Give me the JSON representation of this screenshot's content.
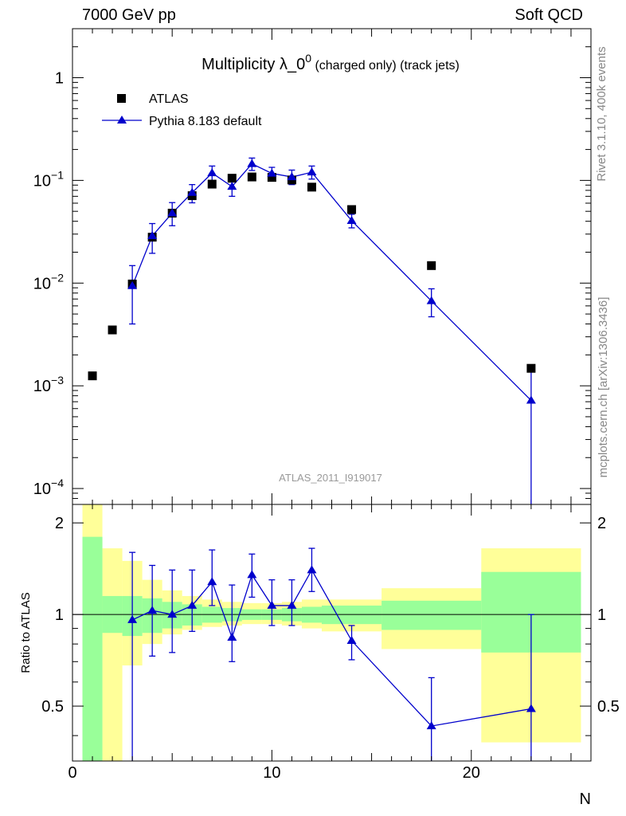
{
  "header": {
    "left": "7000 GeV pp",
    "right": "Soft QCD"
  },
  "side_labels": {
    "rivet": "Rivet 3.1.10,  400k events",
    "source": "mcplots.cern.ch [arXiv:1306.3436]"
  },
  "chart_data": {
    "type": "scatter",
    "title_main": "Multiplicity λ_0",
    "title_sup": "0",
    "title_sub": " (charged only) (track jets)",
    "watermark": "ATLAS_2011_I919017",
    "xlabel": "N",
    "ratio_ylabel": "Ratio to ATLAS",
    "xlim": [
      0,
      26
    ],
    "ylim": [
      7e-05,
      3
    ],
    "yscale": "log",
    "ratio_ylim": [
      0.33,
      2.3
    ],
    "x_ticks": [
      0,
      10,
      20
    ],
    "x_tick_labels": [
      "0",
      "10",
      "20"
    ],
    "y_ticks": [
      0.0001,
      0.001,
      0.01,
      0.1,
      1
    ],
    "y_tick_labels": [
      [
        "10",
        "−4"
      ],
      [
        "10",
        "−3"
      ],
      [
        "10",
        "−2"
      ],
      [
        "10",
        "−1"
      ],
      [
        "1",
        ""
      ]
    ],
    "ratio_ticks": [
      0.5,
      1,
      2
    ],
    "ratio_tick_labels": [
      "0.5",
      "1",
      "2"
    ],
    "legend": {
      "position": "top-left",
      "entries": [
        "ATLAS",
        "Pythia 8.183 default"
      ]
    },
    "colors": {
      "data": "#000000",
      "mc": "#0000cc",
      "band_inner": "#99ff99",
      "band_outer": "#ffff99"
    },
    "series": [
      {
        "name": "ATLAS",
        "x": [
          1,
          2,
          3,
          4,
          5,
          6,
          7,
          8,
          9,
          10,
          11,
          12,
          14,
          18,
          23
        ],
        "values": [
          0.00125,
          0.0035,
          0.0098,
          0.028,
          0.048,
          0.071,
          0.092,
          0.105,
          0.108,
          0.107,
          0.101,
          0.086,
          0.052,
          0.0148,
          0.00148
        ]
      },
      {
        "name": "Pythia 8.183 default",
        "x": [
          3,
          4,
          5,
          6,
          7,
          8,
          9,
          10,
          11,
          12,
          14,
          18,
          23
        ],
        "values": [
          0.0094,
          0.0288,
          0.048,
          0.076,
          0.118,
          0.087,
          0.145,
          0.117,
          0.108,
          0.12,
          0.0405,
          0.0067,
          0.00072
        ],
        "err_low": [
          0.004,
          0.0195,
          0.0362,
          0.0605,
          0.096,
          0.07,
          0.125,
          0.1,
          0.091,
          0.103,
          0.0345,
          0.0047,
          7e-05
        ],
        "err_high": [
          0.0148,
          0.038,
          0.0608,
          0.091,
          0.138,
          0.102,
          0.165,
          0.134,
          0.126,
          0.138,
          0.0468,
          0.0088,
          0.0014
        ]
      }
    ],
    "ratio": {
      "x": [
        3,
        4,
        5,
        6,
        7,
        8,
        9,
        10,
        11,
        12,
        14,
        18,
        23
      ],
      "values": [
        0.96,
        1.03,
        1.0,
        1.07,
        1.28,
        0.84,
        1.35,
        1.07,
        1.07,
        1.4,
        0.82,
        0.43,
        0.49
      ],
      "err_low": [
        0.33,
        0.73,
        0.75,
        0.88,
        1.07,
        0.7,
        1.14,
        0.92,
        0.92,
        1.19,
        0.71,
        0.33,
        0.33
      ],
      "err_high": [
        1.6,
        1.45,
        1.4,
        1.4,
        1.63,
        1.25,
        1.58,
        1.3,
        1.3,
        1.65,
        0.92,
        0.62,
        1.0
      ]
    },
    "bands": {
      "inner": [
        {
          "x": [
            0.5,
            1.5
          ],
          "lo": 0.33,
          "hi": 1.8
        },
        {
          "x": [
            1.5,
            2.5
          ],
          "lo": 0.87,
          "hi": 1.15
        },
        {
          "x": [
            2.5,
            3.5
          ],
          "lo": 0.85,
          "hi": 1.15
        },
        {
          "x": [
            3.5,
            4.5
          ],
          "lo": 0.87,
          "hi": 1.13
        },
        {
          "x": [
            4.5,
            5.5
          ],
          "lo": 0.9,
          "hi": 1.1
        },
        {
          "x": [
            5.5,
            6.5
          ],
          "lo": 0.92,
          "hi": 1.08
        },
        {
          "x": [
            6.5,
            7.5
          ],
          "lo": 0.94,
          "hi": 1.06
        },
        {
          "x": [
            7.5,
            8.5
          ],
          "lo": 0.95,
          "hi": 1.05
        },
        {
          "x": [
            8.5,
            9.5
          ],
          "lo": 0.96,
          "hi": 1.04
        },
        {
          "x": [
            9.5,
            10.5
          ],
          "lo": 0.96,
          "hi": 1.04
        },
        {
          "x": [
            10.5,
            11.5
          ],
          "lo": 0.95,
          "hi": 1.05
        },
        {
          "x": [
            11.5,
            12.5
          ],
          "lo": 0.94,
          "hi": 1.06
        },
        {
          "x": [
            12.5,
            15.5
          ],
          "lo": 0.93,
          "hi": 1.07
        },
        {
          "x": [
            15.5,
            20.5
          ],
          "lo": 0.89,
          "hi": 1.11
        },
        {
          "x": [
            20.5,
            25.5
          ],
          "lo": 0.75,
          "hi": 1.38
        }
      ],
      "outer": [
        {
          "x": [
            0.5,
            1.5
          ],
          "lo": 0.33,
          "hi": 2.3
        },
        {
          "x": [
            1.5,
            2.5
          ],
          "lo": 0.33,
          "hi": 1.65
        },
        {
          "x": [
            2.5,
            3.5
          ],
          "lo": 0.68,
          "hi": 1.5
        },
        {
          "x": [
            3.5,
            4.5
          ],
          "lo": 0.8,
          "hi": 1.3
        },
        {
          "x": [
            4.5,
            5.5
          ],
          "lo": 0.86,
          "hi": 1.2
        },
        {
          "x": [
            5.5,
            6.5
          ],
          "lo": 0.89,
          "hi": 1.15
        },
        {
          "x": [
            6.5,
            7.5
          ],
          "lo": 0.91,
          "hi": 1.12
        },
        {
          "x": [
            7.5,
            8.5
          ],
          "lo": 0.92,
          "hi": 1.1
        },
        {
          "x": [
            8.5,
            9.5
          ],
          "lo": 0.93,
          "hi": 1.09
        },
        {
          "x": [
            9.5,
            10.5
          ],
          "lo": 0.93,
          "hi": 1.09
        },
        {
          "x": [
            10.5,
            11.5
          ],
          "lo": 0.92,
          "hi": 1.1
        },
        {
          "x": [
            11.5,
            12.5
          ],
          "lo": 0.9,
          "hi": 1.12
        },
        {
          "x": [
            12.5,
            15.5
          ],
          "lo": 0.88,
          "hi": 1.12
        },
        {
          "x": [
            15.5,
            20.5
          ],
          "lo": 0.77,
          "hi": 1.22
        },
        {
          "x": [
            20.5,
            25.5
          ],
          "lo": 0.38,
          "hi": 1.65
        }
      ]
    }
  }
}
